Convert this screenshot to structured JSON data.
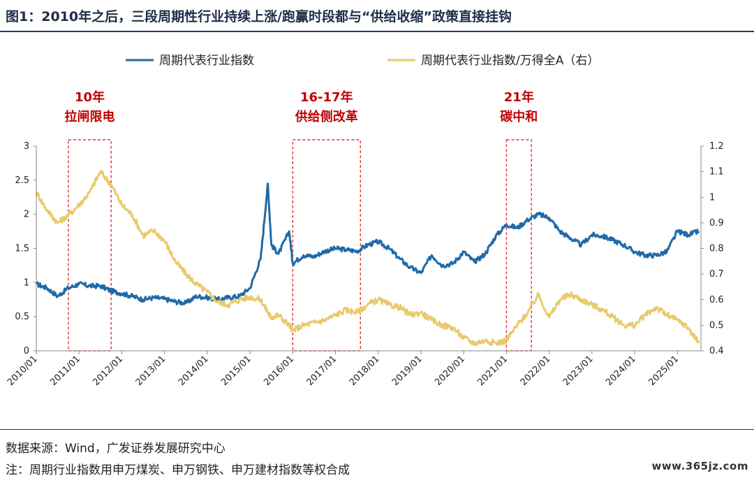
{
  "figure": {
    "title": "图1：2010年之后，三段周期性行业持续上涨/跑赢时段都与“供给收缩”政策直接挂钩",
    "source": "数据来源：Wind，广发证券发展研究中心",
    "note": "注：周期行业指数用申万煤炭、申万钢铁、申万建材指数等权合成",
    "watermark": "www.365jz.com"
  },
  "chart_data": {
    "type": "line",
    "title": "",
    "xlabel": "",
    "ylabel": "",
    "x_ticks": [
      "2010/01",
      "2011/01",
      "2012/01",
      "2013/01",
      "2014/01",
      "2015/01",
      "2016/01",
      "2017/01",
      "2018/01",
      "2019/01",
      "2020/01",
      "2021/01",
      "2022/01",
      "2023/01",
      "2024/01",
      "2025/01"
    ],
    "ylim_left": [
      0,
      3
    ],
    "y_ticks_left": [
      "0",
      "0.5",
      "1",
      "1.5",
      "2",
      "2.5",
      "3"
    ],
    "ylim_right": [
      0.4,
      1.2
    ],
    "y_ticks_right": [
      "0.4",
      "0.5",
      "0.6",
      "0.7",
      "0.8",
      "0.9",
      "1",
      "1.1",
      "1.2"
    ],
    "grid": false,
    "legend_position": "top",
    "series": [
      {
        "name": "周期代表行业指数",
        "axis": "left",
        "color": "#1f6aa8",
        "x": [
          "2010/01",
          "2010/04",
          "2010/07",
          "2010/10",
          "2011/01",
          "2011/04",
          "2011/07",
          "2011/10",
          "2012/01",
          "2012/04",
          "2012/07",
          "2012/10",
          "2013/01",
          "2013/04",
          "2013/07",
          "2013/10",
          "2014/01",
          "2014/04",
          "2014/07",
          "2014/10",
          "2015/01",
          "2015/04",
          "2015/06",
          "2015/07",
          "2015/09",
          "2015/12",
          "2016/01",
          "2016/04",
          "2016/07",
          "2016/10",
          "2017/01",
          "2017/04",
          "2017/07",
          "2017/10",
          "2018/01",
          "2018/04",
          "2018/07",
          "2018/10",
          "2019/01",
          "2019/04",
          "2019/07",
          "2019/10",
          "2020/01",
          "2020/04",
          "2020/07",
          "2020/10",
          "2021/01",
          "2021/04",
          "2021/07",
          "2021/10",
          "2022/01",
          "2022/04",
          "2022/07",
          "2022/10",
          "2023/01",
          "2023/04",
          "2023/07",
          "2023/10",
          "2024/01",
          "2024/04",
          "2024/07",
          "2024/10",
          "2025/01",
          "2025/04",
          "2025/07"
        ],
        "values": [
          0.98,
          0.92,
          0.8,
          0.92,
          0.98,
          0.95,
          0.95,
          0.88,
          0.84,
          0.8,
          0.75,
          0.78,
          0.76,
          0.72,
          0.7,
          0.8,
          0.78,
          0.75,
          0.78,
          0.8,
          0.92,
          1.35,
          2.45,
          1.55,
          1.42,
          1.75,
          1.28,
          1.4,
          1.38,
          1.46,
          1.5,
          1.48,
          1.46,
          1.55,
          1.6,
          1.5,
          1.35,
          1.22,
          1.14,
          1.4,
          1.25,
          1.28,
          1.45,
          1.3,
          1.42,
          1.68,
          1.85,
          1.8,
          1.92,
          2.0,
          1.95,
          1.75,
          1.65,
          1.55,
          1.7,
          1.68,
          1.62,
          1.55,
          1.45,
          1.4,
          1.4,
          1.45,
          1.75,
          1.7,
          1.75
        ]
      },
      {
        "name": "周期代表行业指数/万得全A（右）",
        "axis": "right",
        "color": "#e8c96b",
        "x": [
          "2010/01",
          "2010/04",
          "2010/07",
          "2010/10",
          "2011/01",
          "2011/04",
          "2011/07",
          "2011/10",
          "2012/01",
          "2012/04",
          "2012/07",
          "2012/10",
          "2013/01",
          "2013/04",
          "2013/07",
          "2013/10",
          "2014/01",
          "2014/04",
          "2014/07",
          "2014/10",
          "2015/01",
          "2015/04",
          "2015/06",
          "2015/07",
          "2015/09",
          "2015/12",
          "2016/01",
          "2016/04",
          "2016/07",
          "2016/10",
          "2017/01",
          "2017/04",
          "2017/07",
          "2017/10",
          "2018/01",
          "2018/04",
          "2018/07",
          "2018/10",
          "2019/01",
          "2019/04",
          "2019/07",
          "2019/10",
          "2020/01",
          "2020/04",
          "2020/07",
          "2020/10",
          "2021/01",
          "2021/04",
          "2021/07",
          "2021/10",
          "2022/01",
          "2022/04",
          "2022/07",
          "2022/10",
          "2023/01",
          "2023/04",
          "2023/07",
          "2023/10",
          "2024/01",
          "2024/04",
          "2024/07",
          "2024/10",
          "2025/01",
          "2025/04",
          "2025/07"
        ],
        "values": [
          1.02,
          0.95,
          0.9,
          0.93,
          0.97,
          1.02,
          1.1,
          1.05,
          0.97,
          0.93,
          0.85,
          0.87,
          0.83,
          0.75,
          0.7,
          0.66,
          0.63,
          0.59,
          0.58,
          0.6,
          0.61,
          0.6,
          0.55,
          0.53,
          0.54,
          0.5,
          0.48,
          0.5,
          0.51,
          0.52,
          0.54,
          0.56,
          0.55,
          0.58,
          0.6,
          0.58,
          0.57,
          0.54,
          0.55,
          0.52,
          0.5,
          0.49,
          0.45,
          0.43,
          0.44,
          0.43,
          0.44,
          0.5,
          0.55,
          0.62,
          0.53,
          0.6,
          0.62,
          0.6,
          0.58,
          0.56,
          0.53,
          0.5,
          0.5,
          0.54,
          0.57,
          0.54,
          0.52,
          0.49,
          0.43
        ]
      }
    ],
    "annotations": [
      {
        "lines": [
          "10年",
          "拉闸限电"
        ],
        "start": "2010/10",
        "end": "2011/10"
      },
      {
        "lines": [
          "16-17年",
          "供给侧改革"
        ],
        "start": "2016/01",
        "end": "2017/08"
      },
      {
        "lines": [
          "21年",
          "碳中和"
        ],
        "start": "2021/01",
        "end": "2021/08"
      }
    ]
  }
}
